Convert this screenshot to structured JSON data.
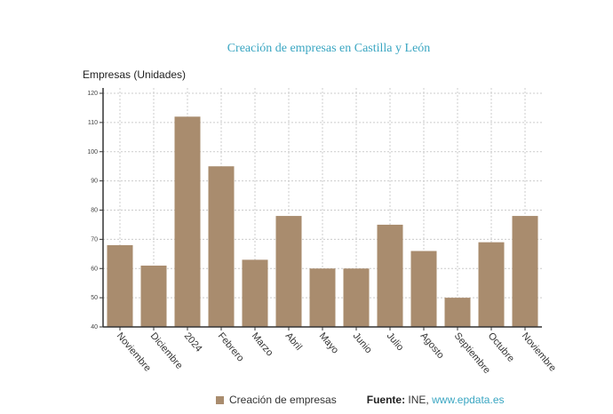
{
  "chart_data": {
    "type": "bar",
    "title": "Creación de empresas en Castilla y León",
    "ylabel": "Empresas (Unidades)",
    "xlabel": "",
    "categories": [
      "Noviembre",
      "Diciembre",
      "2024",
      "Febrero",
      "Marzo",
      "Abril",
      "Mayo",
      "Junio",
      "Julio",
      "Agosto",
      "Septiembre",
      "Octubre",
      "Noviembre"
    ],
    "series": [
      {
        "name": "Creación de empresas",
        "values": [
          68,
          61,
          112,
          95,
          63,
          78,
          60,
          60,
          75,
          66,
          50,
          69,
          78
        ]
      }
    ],
    "ylim": [
      40,
      120
    ],
    "yticks": [
      40,
      50,
      60,
      70,
      80,
      90,
      100,
      110,
      120
    ],
    "grid": true,
    "legend": "bottom",
    "bar_color": "#a98c6e"
  },
  "source": {
    "label": "Fuente:",
    "text": "INE,",
    "link": "www.epdata.es"
  }
}
